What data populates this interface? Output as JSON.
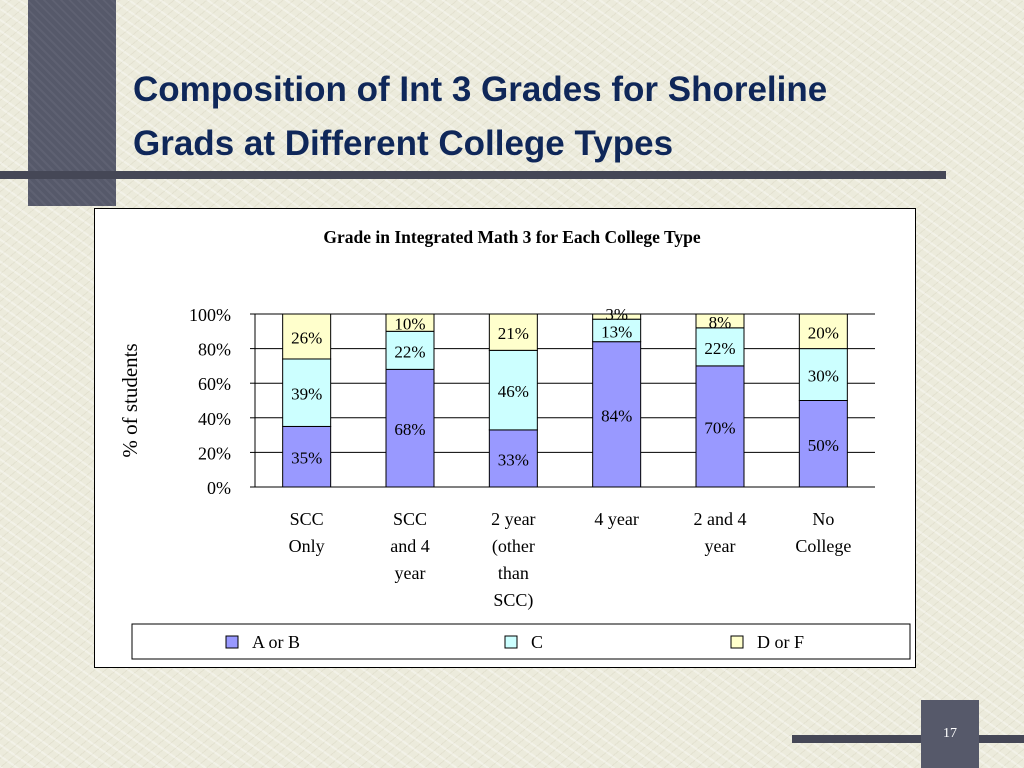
{
  "slide": {
    "title_line1": "Composition of Int 3 Grades for Shoreline",
    "title_line2": "Grads at Different College Types",
    "page_number": "17"
  },
  "colors": {
    "a_or_b": "#9999ff",
    "c": "#ccffff",
    "d_or_f": "#ffffcc",
    "title": "#0f2759"
  },
  "chart_data": {
    "type": "bar",
    "stacked": true,
    "title": "Grade in Integrated Math 3 for Each College Type",
    "xlabel": "",
    "ylabel": "% of students",
    "ylim": [
      0,
      100
    ],
    "yticks": [
      "0%",
      "20%",
      "40%",
      "60%",
      "80%",
      "100%"
    ],
    "grid": true,
    "legend": "bottom",
    "categories": [
      [
        "SCC",
        "Only"
      ],
      [
        "SCC",
        "and 4",
        "year"
      ],
      [
        "2 year",
        "(other",
        "than",
        "SCC)"
      ],
      [
        "4 year"
      ],
      [
        "2 and  4",
        "year"
      ],
      [
        "No",
        "College"
      ]
    ],
    "series": [
      {
        "name": "A or B",
        "values": [
          35,
          68,
          33,
          84,
          70,
          50
        ],
        "labels": [
          "35%",
          "68%",
          "33%",
          "84%",
          "70%",
          "50%"
        ]
      },
      {
        "name": "C",
        "values": [
          39,
          22,
          46,
          13,
          22,
          30
        ],
        "labels": [
          "39%",
          "22%",
          "46%",
          "13%",
          "22%",
          "30%"
        ]
      },
      {
        "name": "D or F",
        "values": [
          26,
          10,
          21,
          3,
          8,
          20
        ],
        "labels": [
          "26%",
          "10%",
          "21%",
          "3%",
          "8%",
          "20%"
        ]
      }
    ]
  }
}
